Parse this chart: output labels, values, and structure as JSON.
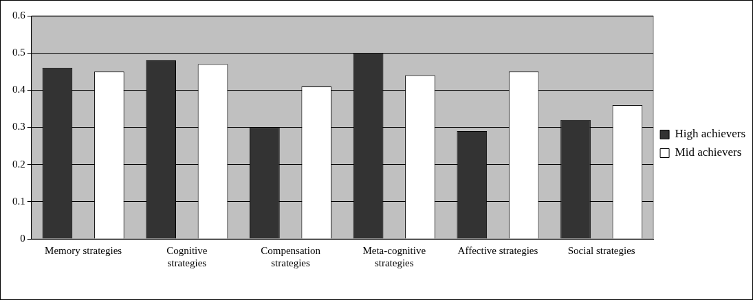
{
  "chart_data": {
    "type": "bar",
    "categories": [
      "Memory strategies",
      "Cognitive strategies",
      "Compensation strategies",
      "Meta-cognitive strategies",
      "Affective strategies",
      "Social strategies"
    ],
    "series": [
      {
        "name": "High achievers",
        "color": "#333333",
        "values": [
          0.46,
          0.48,
          0.3,
          0.5,
          0.29,
          0.32
        ]
      },
      {
        "name": "Mid achievers",
        "color": "#ffffff",
        "values": [
          0.45,
          0.47,
          0.41,
          0.44,
          0.45,
          0.36
        ]
      }
    ],
    "ylim": [
      0,
      0.6
    ],
    "yticks": [
      0,
      0.1,
      0.2,
      0.3,
      0.4,
      0.5,
      0.6
    ],
    "grid": "y",
    "legend": "right"
  }
}
